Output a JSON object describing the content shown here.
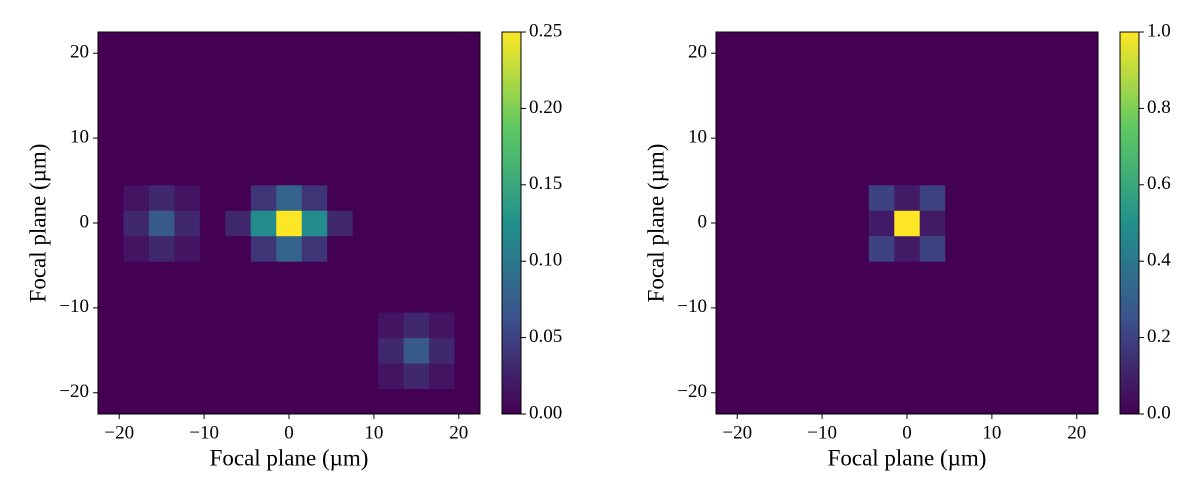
{
  "chart_data": [
    {
      "type": "heatmap",
      "colormap": "viridis",
      "xlabel": "Focal plane (µm)",
      "ylabel": "Focal plane (µm)",
      "x": [
        -21,
        -18,
        -15,
        -12,
        -9,
        -6,
        -3,
        0,
        3,
        6,
        9,
        12,
        15,
        18,
        21
      ],
      "y": [
        -21,
        -18,
        -15,
        -12,
        -9,
        -6,
        -3,
        0,
        3,
        6,
        9,
        12,
        15,
        18,
        21
      ],
      "z": [
        [
          0,
          0,
          0,
          0,
          0,
          0,
          0,
          0,
          0,
          0,
          0,
          0,
          0,
          0,
          0
        ],
        [
          0,
          0,
          0,
          0,
          0,
          0,
          0,
          0,
          0,
          0,
          0,
          0.015,
          0.03,
          0.015,
          0
        ],
        [
          0,
          0,
          0,
          0,
          0,
          0,
          0,
          0,
          0,
          0,
          0,
          0.03,
          0.07,
          0.03,
          0
        ],
        [
          0,
          0,
          0,
          0,
          0,
          0,
          0,
          0,
          0,
          0,
          0,
          0.015,
          0.03,
          0.015,
          0
        ],
        [
          0,
          0,
          0,
          0,
          0,
          0,
          0,
          0,
          0,
          0,
          0,
          0,
          0,
          0,
          0
        ],
        [
          0,
          0,
          0,
          0,
          0,
          0,
          0,
          0,
          0,
          0,
          0,
          0,
          0,
          0,
          0
        ],
        [
          0,
          0.015,
          0.03,
          0.015,
          0,
          0,
          0.04,
          0.08,
          0.04,
          0,
          0,
          0,
          0,
          0,
          0
        ],
        [
          0,
          0.03,
          0.07,
          0.03,
          0,
          0.03,
          0.12,
          0.25,
          0.12,
          0.03,
          0,
          0,
          0,
          0,
          0
        ],
        [
          0,
          0.015,
          0.03,
          0.015,
          0,
          0,
          0.04,
          0.08,
          0.04,
          0,
          0,
          0,
          0,
          0,
          0
        ],
        [
          0,
          0,
          0,
          0,
          0,
          0,
          0,
          0,
          0,
          0,
          0,
          0,
          0,
          0,
          0
        ],
        [
          0,
          0,
          0,
          0,
          0,
          0,
          0,
          0,
          0,
          0,
          0,
          0,
          0,
          0,
          0
        ],
        [
          0,
          0,
          0,
          0,
          0,
          0,
          0,
          0,
          0,
          0,
          0,
          0,
          0,
          0,
          0
        ],
        [
          0,
          0,
          0,
          0,
          0,
          0,
          0,
          0,
          0,
          0,
          0,
          0,
          0,
          0,
          0
        ],
        [
          0,
          0,
          0,
          0,
          0,
          0,
          0,
          0,
          0,
          0,
          0,
          0,
          0,
          0,
          0
        ],
        [
          0,
          0,
          0,
          0,
          0,
          0,
          0,
          0,
          0,
          0,
          0,
          0,
          0,
          0,
          0
        ]
      ],
      "xlim": [
        -22.5,
        22.5
      ],
      "ylim": [
        -22.5,
        22.5
      ],
      "xticks": [
        {
          "value": -20,
          "label": "−20"
        },
        {
          "value": -10,
          "label": "−10"
        },
        0,
        10,
        20
      ],
      "yticks": [
        {
          "value": -20,
          "label": "−20"
        },
        {
          "value": -10,
          "label": "−10"
        },
        0,
        10,
        20
      ],
      "clim": [
        0,
        0.25
      ],
      "cticks": [
        {
          "value": 0,
          "label": "0.00"
        },
        0.05,
        {
          "value": 0.1,
          "label": "0.10"
        },
        0.15,
        {
          "value": 0.2,
          "label": "0.20"
        },
        0.25
      ]
    },
    {
      "type": "heatmap",
      "colormap": "viridis",
      "xlabel": "Focal plane (µm)",
      "ylabel": "Focal plane (µm)",
      "x": [
        -21,
        -18,
        -15,
        -12,
        -9,
        -6,
        -3,
        0,
        3,
        6,
        9,
        12,
        15,
        18,
        21
      ],
      "y": [
        -21,
        -18,
        -15,
        -12,
        -9,
        -6,
        -3,
        0,
        3,
        6,
        9,
        12,
        15,
        18,
        21
      ],
      "z": [
        [
          0,
          0,
          0,
          0,
          0,
          0,
          0,
          0,
          0,
          0,
          0,
          0,
          0,
          0,
          0
        ],
        [
          0,
          0,
          0,
          0,
          0,
          0,
          0,
          0,
          0,
          0,
          0,
          0,
          0,
          0,
          0
        ],
        [
          0,
          0,
          0,
          0,
          0,
          0,
          0,
          0,
          0,
          0,
          0,
          0,
          0,
          0,
          0
        ],
        [
          0,
          0,
          0,
          0,
          0,
          0,
          0,
          0,
          0,
          0,
          0,
          0,
          0,
          0,
          0
        ],
        [
          0,
          0,
          0,
          0,
          0,
          0,
          0,
          0,
          0,
          0,
          0,
          0,
          0,
          0,
          0
        ],
        [
          0,
          0,
          0,
          0,
          0,
          0,
          0,
          0,
          0,
          0,
          0,
          0,
          0,
          0,
          0
        ],
        [
          0,
          0,
          0,
          0,
          0,
          0,
          0.2,
          0.08,
          0.2,
          0,
          0,
          0,
          0,
          0,
          0
        ],
        [
          0,
          0,
          0,
          0,
          0,
          0,
          0.08,
          1.0,
          0.08,
          0,
          0,
          0,
          0,
          0,
          0
        ],
        [
          0,
          0,
          0,
          0,
          0,
          0,
          0.2,
          0.08,
          0.2,
          0,
          0,
          0,
          0,
          0,
          0
        ],
        [
          0,
          0,
          0,
          0,
          0,
          0,
          0,
          0,
          0,
          0,
          0,
          0,
          0,
          0,
          0
        ],
        [
          0,
          0,
          0,
          0,
          0,
          0,
          0,
          0,
          0,
          0,
          0,
          0,
          0,
          0,
          0
        ],
        [
          0,
          0,
          0,
          0,
          0,
          0,
          0,
          0,
          0,
          0,
          0,
          0,
          0,
          0,
          0
        ],
        [
          0,
          0,
          0,
          0,
          0,
          0,
          0,
          0,
          0,
          0,
          0,
          0,
          0,
          0,
          0
        ],
        [
          0,
          0,
          0,
          0,
          0,
          0,
          0,
          0,
          0,
          0,
          0,
          0,
          0,
          0,
          0
        ],
        [
          0,
          0,
          0,
          0,
          0,
          0,
          0,
          0,
          0,
          0,
          0,
          0,
          0,
          0,
          0
        ]
      ],
      "xlim": [
        -22.5,
        22.5
      ],
      "ylim": [
        -22.5,
        22.5
      ],
      "xticks": [
        {
          "value": -20,
          "label": "−20"
        },
        {
          "value": -10,
          "label": "−10"
        },
        0,
        10,
        20
      ],
      "yticks": [
        {
          "value": -20,
          "label": "−20"
        },
        {
          "value": -10,
          "label": "−10"
        },
        0,
        10,
        20
      ],
      "clim": [
        0,
        1
      ],
      "cticks": [
        {
          "value": 0,
          "label": "0.0"
        },
        0.2,
        0.4,
        0.6,
        0.8,
        {
          "value": 1,
          "label": "1.0"
        }
      ]
    }
  ]
}
